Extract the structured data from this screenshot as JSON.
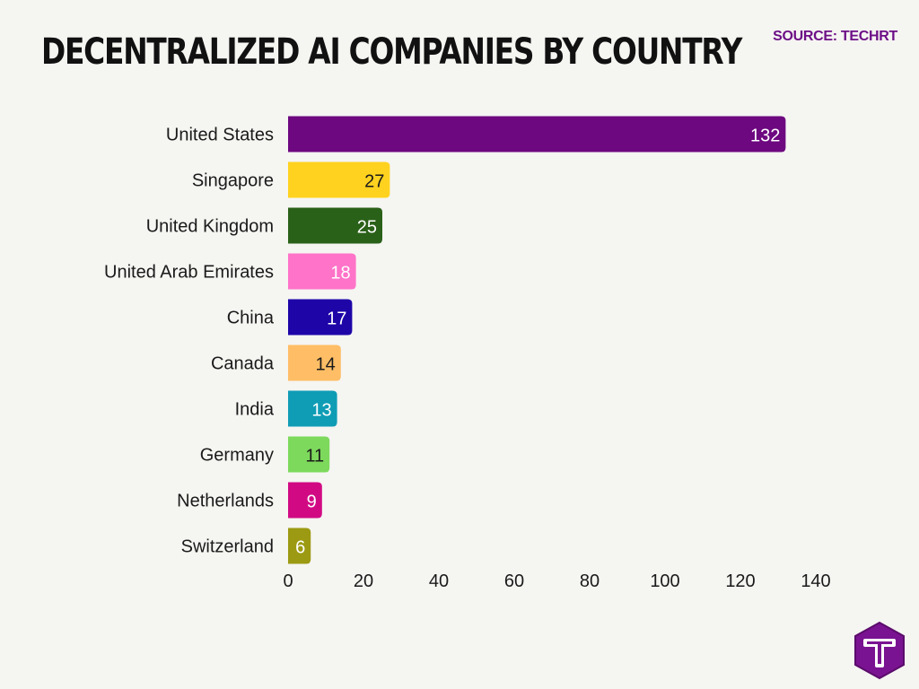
{
  "header": {
    "title": "DECENTRALIZED AI COMPANIES BY COUNTRY",
    "source": "SOURCE: TECHRT"
  },
  "logo": {
    "icon": "t-hexagon-logo-icon",
    "color": "#7a1391"
  },
  "colors": {
    "title": "#111111",
    "source": "#6d0f86",
    "background": "#f5f5f2"
  },
  "chart_data": {
    "type": "bar",
    "orientation": "horizontal",
    "categories": [
      "United States",
      "Singapore",
      "United Kingdom",
      "United Arab Emirates",
      "China",
      "Canada",
      "India",
      "Germany",
      "Netherlands",
      "Switzerland"
    ],
    "values": [
      132,
      27,
      25,
      18,
      17,
      14,
      13,
      11,
      9,
      6
    ],
    "colors": [
      "#6d0880",
      "#ffd21f",
      "#2a6119",
      "#ff73c8",
      "#1d05a8",
      "#ffbe66",
      "#0f9cb5",
      "#7dd95c",
      "#d10a84",
      "#9c9a12"
    ],
    "label_colors": [
      "#ffffff",
      "#1a1a1a",
      "#ffffff",
      "#ffffff",
      "#ffffff",
      "#1a1a1a",
      "#ffffff",
      "#1a1a1a",
      "#ffffff",
      "#ffffff"
    ],
    "xticks": [
      0,
      20,
      40,
      60,
      80,
      100,
      120,
      140
    ],
    "xlim": [
      0,
      140
    ],
    "grid": false,
    "legend": "none"
  }
}
